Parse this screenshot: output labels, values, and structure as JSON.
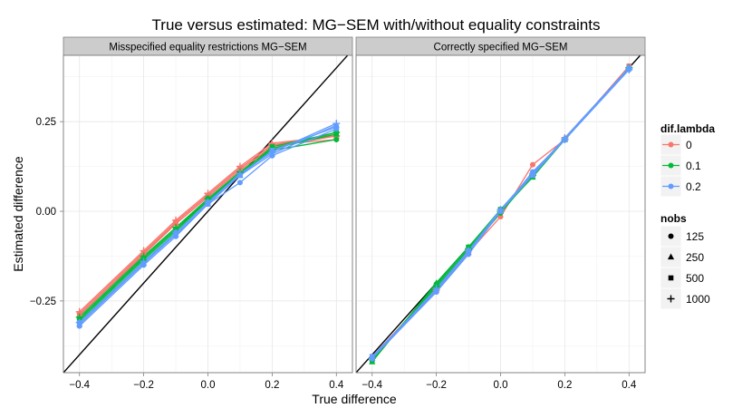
{
  "chart_data": {
    "type": "line",
    "title": "True versus estimated: MG−SEM with/without equality constraints",
    "xlabel": "True difference",
    "ylabel": "Estimated difference",
    "x_ticks": [
      "−0.4",
      "−0.2",
      "0.0",
      "0.2",
      "0.4"
    ],
    "y_ticks": [
      "−0.25",
      "0.00",
      "0.25"
    ],
    "xlim": [
      -0.45,
      0.45
    ],
    "ylim": [
      -0.45,
      0.435
    ],
    "x": [
      -0.4,
      -0.2,
      -0.1,
      0.0,
      0.1,
      0.2,
      0.4
    ],
    "reference_line": "y = x",
    "grid": true,
    "legend_position": "right",
    "colors": {
      "0": "#F8766D",
      "0.1": "#00BA38",
      "0.2": "#619CFF"
    },
    "legend": {
      "color_title": "dif.lambda",
      "color_items": [
        {
          "label": "0",
          "color": "#F8766D"
        },
        {
          "label": "0.1",
          "color": "#00BA38"
        },
        {
          "label": "0.2",
          "color": "#619CFF"
        }
      ],
      "shape_title": "nobs",
      "shape_items": [
        {
          "label": "125",
          "shape": "circle"
        },
        {
          "label": "250",
          "shape": "triangle"
        },
        {
          "label": "500",
          "shape": "square"
        },
        {
          "label": "1000",
          "shape": "plus"
        }
      ]
    },
    "panels": [
      {
        "strip": "Misspecified equality restrictions MG−SEM",
        "series": [
          {
            "dif_lambda": "0",
            "nobs": "125",
            "values": [
              -0.285,
              -0.115,
              -0.03,
              0.045,
              0.12,
              0.185,
              0.2
            ]
          },
          {
            "dif_lambda": "0",
            "nobs": "250",
            "values": [
              -0.29,
              -0.12,
              -0.035,
              0.04,
              0.115,
              0.18,
              0.21
            ]
          },
          {
            "dif_lambda": "0",
            "nobs": "500",
            "values": [
              -0.29,
              -0.12,
              -0.03,
              0.045,
              0.12,
              0.185,
              0.215
            ]
          },
          {
            "dif_lambda": "0",
            "nobs": "1000",
            "values": [
              -0.28,
              -0.11,
              -0.025,
              0.05,
              0.125,
              0.19,
              0.21
            ]
          },
          {
            "dif_lambda": "0.1",
            "nobs": "125",
            "values": [
              -0.3,
              -0.13,
              -0.05,
              0.03,
              0.105,
              0.17,
              0.2
            ]
          },
          {
            "dif_lambda": "0.1",
            "nobs": "250",
            "values": [
              -0.305,
              -0.135,
              -0.055,
              0.03,
              0.1,
              0.175,
              0.215
            ]
          },
          {
            "dif_lambda": "0.1",
            "nobs": "500",
            "values": [
              -0.3,
              -0.13,
              -0.05,
              0.035,
              0.105,
              0.18,
              0.22
            ]
          },
          {
            "dif_lambda": "0.1",
            "nobs": "1000",
            "values": [
              -0.295,
              -0.125,
              -0.045,
              0.035,
              0.11,
              0.175,
              0.22
            ]
          },
          {
            "dif_lambda": "0.2",
            "nobs": "125",
            "values": [
              -0.32,
              -0.15,
              -0.07,
              0.02,
              0.08,
              0.155,
              0.23
            ]
          },
          {
            "dif_lambda": "0.2",
            "nobs": "250",
            "values": [
              -0.315,
              -0.145,
              -0.065,
              0.02,
              0.1,
              0.16,
              0.24
            ]
          },
          {
            "dif_lambda": "0.2",
            "nobs": "500",
            "values": [
              -0.31,
              -0.145,
              -0.06,
              0.025,
              0.1,
              0.17,
              0.235
            ]
          },
          {
            "dif_lambda": "0.2",
            "nobs": "1000",
            "values": [
              -0.31,
              -0.14,
              -0.06,
              0.025,
              0.105,
              0.165,
              0.245
            ]
          }
        ]
      },
      {
        "strip": "Correctly specified MG−SEM",
        "series": [
          {
            "dif_lambda": "0",
            "nobs": "125",
            "values": [
              -0.41,
              -0.225,
              -0.115,
              -0.015,
              0.13,
              0.2,
              0.405
            ]
          },
          {
            "dif_lambda": "0",
            "nobs": "250",
            "values": [
              -0.41,
              -0.22,
              -0.11,
              0.0,
              0.105,
              0.2,
              0.4
            ]
          },
          {
            "dif_lambda": "0",
            "nobs": "500",
            "values": [
              -0.405,
              -0.215,
              -0.105,
              0.005,
              0.1,
              0.2,
              0.405
            ]
          },
          {
            "dif_lambda": "0",
            "nobs": "1000",
            "values": [
              -0.41,
              -0.22,
              -0.105,
              0.0,
              0.1,
              0.205,
              0.4
            ]
          },
          {
            "dif_lambda": "0.1",
            "nobs": "125",
            "values": [
              -0.415,
              -0.21,
              -0.11,
              -0.005,
              0.1,
              0.2,
              0.4
            ]
          },
          {
            "dif_lambda": "0.1",
            "nobs": "250",
            "values": [
              -0.42,
              -0.2,
              -0.1,
              0.0,
              0.095,
              0.2,
              0.4
            ]
          },
          {
            "dif_lambda": "0.1",
            "nobs": "500",
            "values": [
              -0.415,
              -0.205,
              -0.1,
              0.005,
              0.1,
              0.2,
              0.4
            ]
          },
          {
            "dif_lambda": "0.1",
            "nobs": "1000",
            "values": [
              -0.41,
              -0.21,
              -0.105,
              0.0,
              0.1,
              0.2,
              0.4
            ]
          },
          {
            "dif_lambda": "0.2",
            "nobs": "125",
            "values": [
              -0.41,
              -0.225,
              -0.12,
              0.0,
              0.11,
              0.2,
              0.395
            ]
          },
          {
            "dif_lambda": "0.2",
            "nobs": "250",
            "values": [
              -0.41,
              -0.22,
              -0.115,
              0.005,
              0.105,
              0.205,
              0.4
            ]
          },
          {
            "dif_lambda": "0.2",
            "nobs": "500",
            "values": [
              -0.405,
              -0.22,
              -0.11,
              0.0,
              0.1,
              0.2,
              0.4
            ]
          },
          {
            "dif_lambda": "0.2",
            "nobs": "1000",
            "values": [
              -0.41,
              -0.215,
              -0.11,
              0.005,
              0.105,
              0.2,
              0.395
            ]
          }
        ]
      }
    ]
  }
}
